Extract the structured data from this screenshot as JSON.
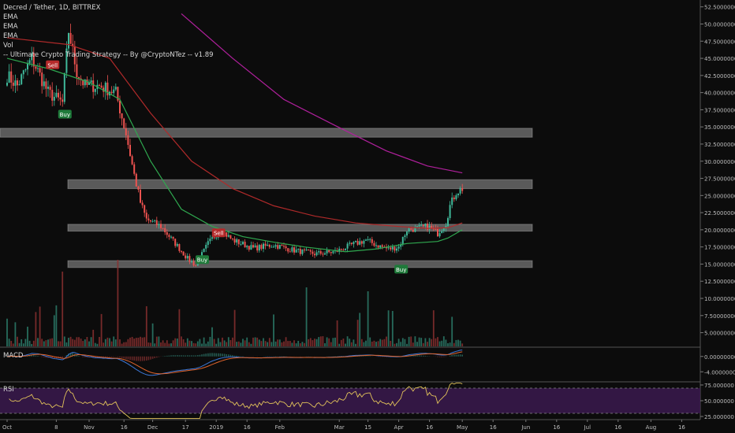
{
  "header": {
    "title": "Decred / Tether, 1D, BITTREX",
    "indicators": [
      "EMA",
      "EMA",
      "EMA",
      "Vol",
      "-- Ultimate Crypto Trading Strategy -- By @CryptoNTez -- v1.89"
    ]
  },
  "panes": {
    "macd_label": "MACD",
    "rsi_label": "RSI"
  },
  "chart_data": {
    "type": "candlestick",
    "symbol": "Decred / Tether",
    "interval": "1D",
    "exchange": "BITTREX",
    "y_axis_price": {
      "min": 3,
      "max": 53.5,
      "ticks": [
        "52.50000000",
        "50.00000000",
        "47.50000000",
        "45.00000000",
        "42.50000000",
        "40.00000000",
        "37.50000000",
        "35.00000000",
        "32.50000000",
        "30.00000000",
        "27.50000000",
        "25.00000000",
        "22.50000000",
        "20.00000000",
        "17.50000000",
        "15.00000000",
        "12.50000000",
        "10.00000000",
        "7.50000000",
        "5.00000000"
      ],
      "tick_values": [
        52.5,
        50,
        47.5,
        45,
        42.5,
        40,
        37.5,
        35,
        32.5,
        30,
        27.5,
        25,
        22.5,
        20,
        17.5,
        15,
        12.5,
        10,
        7.5,
        5
      ]
    },
    "y_axis_macd": {
      "ticks": [
        "0.00000000",
        "-4.00000000"
      ],
      "tick_values": [
        0,
        -4
      ],
      "range": [
        -6,
        2
      ]
    },
    "y_axis_rsi": {
      "ticks": [
        "75.000000",
        "50.000000",
        "25.000000"
      ],
      "tick_values": [
        75,
        50,
        25
      ],
      "range": [
        20,
        80
      ],
      "bands": [
        70,
        30
      ]
    },
    "x_axis": {
      "ticks": [
        "Oct",
        "8",
        "Nov",
        "16",
        "Dec",
        "17",
        "2019",
        "16",
        "Feb",
        "Mar",
        "15",
        "Apr",
        "16",
        "May",
        "16",
        "Jun",
        "16",
        "Jul",
        "16",
        "Aug",
        "16"
      ],
      "tick_days": [
        0,
        24,
        40,
        57,
        71,
        87,
        102,
        117,
        133,
        162,
        176,
        191,
        206,
        222,
        237,
        253,
        268,
        283,
        298,
        314,
        329
      ]
    },
    "zones": [
      [
        33.5,
        34.8
      ],
      [
        26.0,
        27.3
      ],
      [
        19.8,
        20.8
      ],
      [
        14.5,
        15.5
      ]
    ],
    "ema_series": [
      {
        "color": "#2fa84f",
        "points": [
          [
            0,
            45
          ],
          [
            20,
            43.5
          ],
          [
            40,
            41.5
          ],
          [
            55,
            39
          ],
          [
            70,
            30
          ],
          [
            85,
            23
          ],
          [
            100,
            20.5
          ],
          [
            115,
            19
          ],
          [
            130,
            18.2
          ],
          [
            145,
            17.5
          ],
          [
            165,
            16.8
          ],
          [
            180,
            17.2
          ],
          [
            195,
            18
          ],
          [
            210,
            18.3
          ],
          [
            215,
            18.8
          ],
          [
            222,
            20
          ]
        ]
      },
      {
        "color": "#b02a2a",
        "points": [
          [
            0,
            48
          ],
          [
            30,
            47
          ],
          [
            50,
            45
          ],
          [
            70,
            37
          ],
          [
            90,
            30
          ],
          [
            110,
            26
          ],
          [
            130,
            23.5
          ],
          [
            150,
            22
          ],
          [
            170,
            21
          ],
          [
            190,
            20.5
          ],
          [
            205,
            20.2
          ],
          [
            215,
            20.3
          ],
          [
            222,
            21
          ]
        ]
      },
      {
        "color": "#b0209c",
        "points": [
          [
            85,
            51.5
          ],
          [
            110,
            45
          ],
          [
            135,
            39
          ],
          [
            160,
            35.2
          ],
          [
            185,
            31.5
          ],
          [
            205,
            29.3
          ],
          [
            222,
            28.3
          ]
        ]
      }
    ],
    "signals": [
      {
        "day": 22,
        "price": 44.0,
        "label": "Sell",
        "kind": "sell"
      },
      {
        "day": 28,
        "price": 36.8,
        "label": "Buy",
        "kind": "buy"
      },
      {
        "day": 95,
        "price": 15.6,
        "label": "Buy",
        "kind": "buy"
      },
      {
        "day": 103,
        "price": 19.5,
        "label": "Sell",
        "kind": "sell"
      },
      {
        "day": 192,
        "price": 14.2,
        "label": "Buy",
        "kind": "buy"
      }
    ],
    "price_anchors": [
      [
        0,
        42.5
      ],
      [
        5,
        41
      ],
      [
        12,
        45
      ],
      [
        20,
        40
      ],
      [
        27,
        38.5
      ],
      [
        30,
        49
      ],
      [
        34,
        43
      ],
      [
        38,
        41
      ],
      [
        45,
        41
      ],
      [
        53,
        40
      ],
      [
        58,
        34
      ],
      [
        62,
        28
      ],
      [
        65,
        24
      ],
      [
        68,
        21.5
      ],
      [
        75,
        20.5
      ],
      [
        82,
        18
      ],
      [
        88,
        15.8
      ],
      [
        92,
        14.8
      ],
      [
        98,
        18
      ],
      [
        104,
        20
      ],
      [
        110,
        18.5
      ],
      [
        120,
        17.3
      ],
      [
        130,
        17.8
      ],
      [
        140,
        17
      ],
      [
        150,
        16.5
      ],
      [
        160,
        16.8
      ],
      [
        168,
        17.8
      ],
      [
        175,
        18.5
      ],
      [
        180,
        17.8
      ],
      [
        186,
        17.2
      ],
      [
        191,
        17.5
      ],
      [
        195,
        20
      ],
      [
        200,
        20.2
      ],
      [
        205,
        20.5
      ],
      [
        210,
        19.5
      ],
      [
        214,
        21
      ],
      [
        216,
        23.5
      ],
      [
        219,
        25.5
      ],
      [
        222,
        26
      ]
    ]
  },
  "watermark_text": ""
}
